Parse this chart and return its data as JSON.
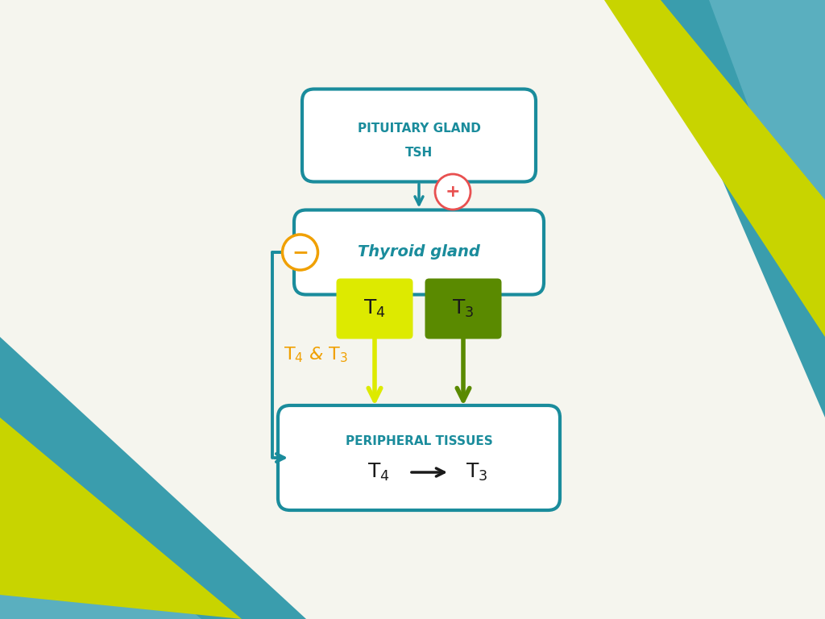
{
  "bg_color": "#F5F5EE",
  "teal": "#1A8C9C",
  "teal_dark": "#1A7A8A",
  "lime_green": "#C8D400",
  "dark_green": "#5A8A00",
  "orange": "#F0A000",
  "red": "#E85050",
  "dark_navy": "#1A3A5C",
  "box_fill": "#FFFFFF",
  "box_edge": "#1A8C9C",
  "pituitary_text": "PITUITARY GLAND\nTSH",
  "thyroid_text": "Thyroid gland",
  "peripheral_text": "PERIPHERAL TISSUES",
  "peripheral_sub": "T₄→T₃",
  "t4_t3_label": "T₄ & T₃",
  "corner_teal": "#2E8FA0",
  "corner_light_teal": "#5AAFBF",
  "corner_lime": "#C8D400"
}
